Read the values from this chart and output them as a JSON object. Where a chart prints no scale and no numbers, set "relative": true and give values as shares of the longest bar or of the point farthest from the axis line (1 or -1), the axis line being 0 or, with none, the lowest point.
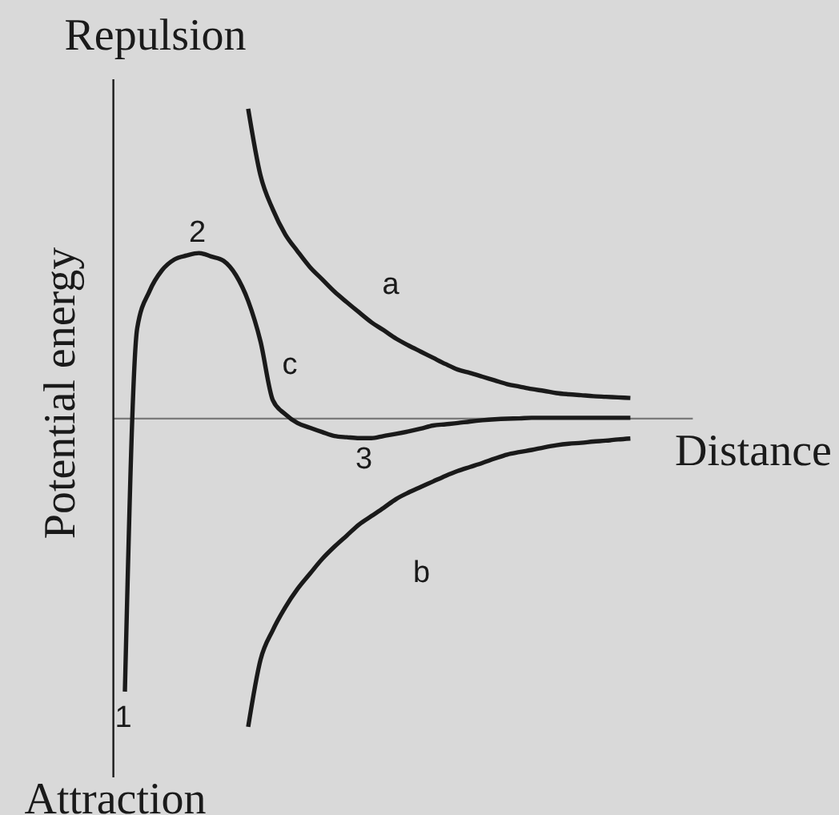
{
  "chart_data": {
    "type": "line",
    "relative": true,
    "xlabel": "Distance",
    "ylabel": "Potential energy",
    "annotations": [
      "Repulsion",
      "Attraction",
      "1",
      "2",
      "3"
    ],
    "categories": [
      null,
      null,
      null,
      null,
      null,
      null,
      null,
      null,
      null,
      null,
      null,
      null,
      null,
      null,
      null,
      null,
      null,
      null,
      null,
      null,
      null,
      null,
      null,
      null,
      null,
      null,
      null,
      null,
      null,
      null,
      null,
      null,
      null,
      null,
      null,
      null,
      null,
      null,
      null,
      null,
      null,
      null,
      null,
      null,
      null,
      null,
      null,
      null
    ],
    "series": [
      {
        "name": "a",
        "color": "#1a1a1a",
        "values": [
          null,
          null,
          null,
          null,
          null,
          null,
          null,
          null,
          null,
          null,
          null,
          1.0,
          0.784,
          0.674,
          0.594,
          0.539,
          0.488,
          0.448,
          0.408,
          0.374,
          0.341,
          0.309,
          0.283,
          0.256,
          0.234,
          0.214,
          0.194,
          0.174,
          0.156,
          0.145,
          0.133,
          0.121,
          0.109,
          0.101,
          0.093,
          0.087,
          0.08,
          0.076,
          0.073,
          0.07,
          0.068,
          0.066,
          0.064,
          null,
          null,
          null,
          null,
          null
        ]
      },
      {
        "name": "b",
        "color": "#1a1a1a",
        "values": [
          null,
          null,
          null,
          null,
          null,
          null,
          null,
          null,
          null,
          null,
          null,
          -1.0,
          -0.783,
          -0.687,
          -0.614,
          -0.554,
          -0.505,
          -0.457,
          -0.417,
          -0.381,
          -0.345,
          -0.318,
          -0.291,
          -0.263,
          -0.242,
          -0.224,
          -0.206,
          -0.188,
          -0.172,
          -0.159,
          -0.146,
          -0.132,
          -0.119,
          -0.111,
          -0.104,
          -0.096,
          -0.089,
          -0.084,
          -0.081,
          -0.077,
          -0.074,
          -0.07,
          -0.067,
          null,
          null,
          null,
          null,
          null
        ]
      },
      {
        "name": "c",
        "color": "#1a1a1a",
        "values": [
          null,
          -0.886,
          0.29,
          0.41,
          0.477,
          0.512,
          0.525,
          0.533,
          0.522,
          0.508,
          0.462,
          0.378,
          0.247,
          0.057,
          0.012,
          -0.017,
          -0.032,
          -0.046,
          -0.059,
          -0.063,
          -0.066,
          -0.066,
          -0.059,
          -0.052,
          -0.044,
          -0.035,
          -0.025,
          -0.021,
          -0.017,
          -0.012,
          -0.008,
          -0.005,
          -0.003,
          -0.002,
          0,
          0,
          0,
          0,
          0,
          0,
          0,
          0,
          0,
          null,
          null,
          null,
          null,
          null
        ]
      }
    ],
    "legend": false,
    "tick_labels": false,
    "line_style": "solid"
  }
}
